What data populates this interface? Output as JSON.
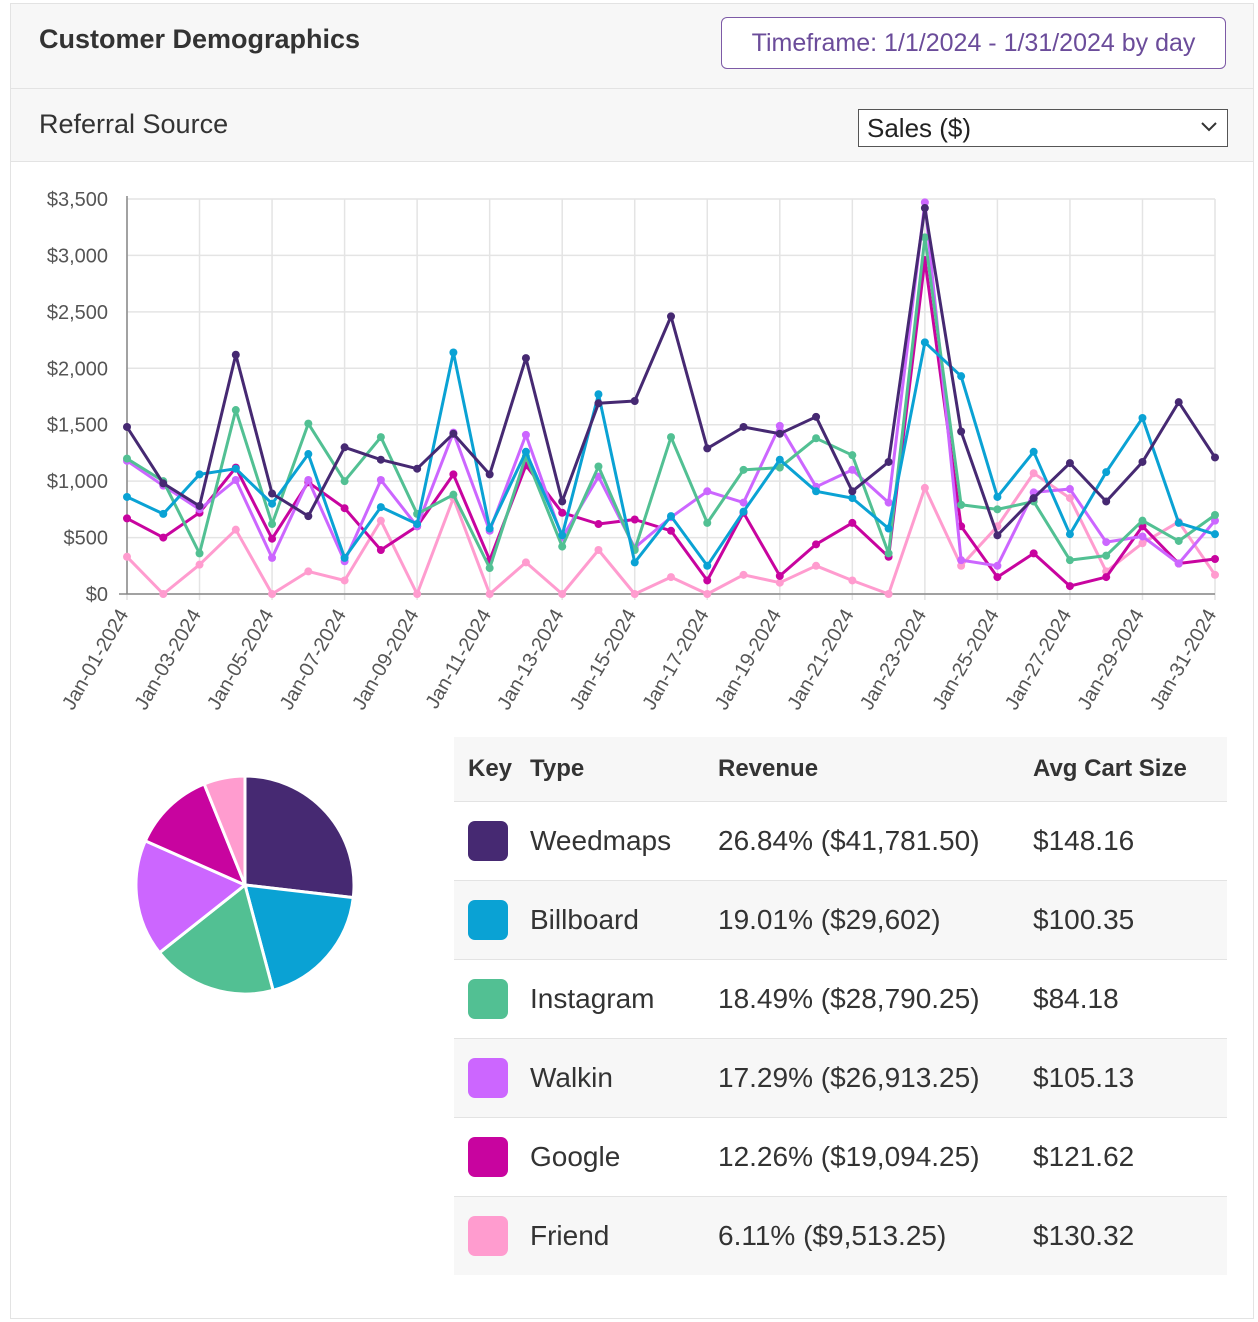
{
  "header": {
    "title": "Customer Demographics",
    "timeframe_label": "Timeframe: 1/1/2024 - 1/31/2024 by day"
  },
  "subheader": {
    "title": "Referral Source",
    "metric_select": "Sales ($)"
  },
  "chart_data": {
    "type": "line",
    "title": "",
    "xlabel": "",
    "ylabel": "",
    "ylim": [
      0,
      3500
    ],
    "yticks": [
      "$0",
      "$500",
      "$1,000",
      "$1,500",
      "$2,000",
      "$2,500",
      "$3,000",
      "$3,500"
    ],
    "ytick_values": [
      0,
      500,
      1000,
      1500,
      2000,
      2500,
      3000,
      3500
    ],
    "xtick_labels": [
      "Jan-01-2024",
      "Jan-03-2024",
      "Jan-05-2024",
      "Jan-07-2024",
      "Jan-09-2024",
      "Jan-11-2024",
      "Jan-13-2024",
      "Jan-15-2024",
      "Jan-17-2024",
      "Jan-19-2024",
      "Jan-21-2024",
      "Jan-23-2024",
      "Jan-25-2024",
      "Jan-27-2024",
      "Jan-29-2024",
      "Jan-31-2024"
    ],
    "days": 31,
    "grid": true,
    "series": [
      {
        "name": "Friend",
        "color": "#ff9ccf",
        "values": [
          330,
          0,
          260,
          570,
          0,
          200,
          120,
          650,
          0,
          850,
          0,
          280,
          0,
          390,
          0,
          150,
          0,
          170,
          100,
          250,
          120,
          0,
          940,
          250,
          600,
          1070,
          850,
          200,
          450,
          640,
          170
        ]
      },
      {
        "name": "Google",
        "color": "#c8049f",
        "values": [
          670,
          500,
          720,
          1120,
          490,
          990,
          760,
          390,
          600,
          1060,
          300,
          1140,
          720,
          620,
          660,
          560,
          120,
          720,
          160,
          440,
          630,
          330,
          2960,
          600,
          150,
          360,
          70,
          150,
          600,
          270,
          310
        ]
      },
      {
        "name": "Walkin",
        "color": "#cc66ff",
        "values": [
          1180,
          960,
          750,
          1010,
          320,
          1010,
          290,
          1010,
          600,
          1430,
          560,
          1410,
          500,
          1040,
          410,
          680,
          910,
          810,
          1490,
          950,
          1100,
          810,
          3470,
          300,
          250,
          900,
          930,
          460,
          510,
          270,
          650
        ]
      },
      {
        "name": "Instagram",
        "color": "#52c093",
        "values": [
          1200,
          1000,
          360,
          1630,
          620,
          1510,
          1000,
          1390,
          710,
          880,
          230,
          1220,
          420,
          1130,
          390,
          1390,
          630,
          1100,
          1120,
          1380,
          1230,
          360,
          3160,
          790,
          750,
          820,
          300,
          340,
          650,
          470,
          700
        ]
      },
      {
        "name": "Billboard",
        "color": "#0aa2d4",
        "values": [
          860,
          710,
          1060,
          1110,
          800,
          1240,
          320,
          770,
          620,
          2140,
          580,
          1260,
          520,
          1770,
          280,
          690,
          250,
          730,
          1190,
          910,
          850,
          580,
          2230,
          1930,
          860,
          1260,
          530,
          1080,
          1560,
          630,
          530
        ]
      },
      {
        "name": "Weedmaps",
        "color": "#462972",
        "values": [
          1480,
          980,
          780,
          2120,
          890,
          690,
          1300,
          1190,
          1110,
          1420,
          1060,
          2090,
          820,
          1690,
          1710,
          2460,
          1290,
          1480,
          1420,
          1570,
          910,
          1170,
          3420,
          1440,
          520,
          850,
          1160,
          820,
          1170,
          1700,
          1210
        ]
      }
    ],
    "pie": {
      "labels": [
        "Weedmaps",
        "Billboard",
        "Instagram",
        "Walkin",
        "Google",
        "Friend"
      ],
      "values": [
        26.84,
        19.01,
        18.49,
        17.29,
        12.26,
        6.11
      ],
      "colors": [
        "#462972",
        "#0aa2d4",
        "#52c093",
        "#cc66ff",
        "#c8049f",
        "#ff9ccf"
      ]
    }
  },
  "table": {
    "headers": {
      "key": "Key",
      "type": "Type",
      "revenue": "Revenue",
      "avg": "Avg Cart Size"
    },
    "rows": [
      {
        "type": "Weedmaps",
        "revenue": "26.84% ($41,781.50)",
        "avg": "$148.16",
        "color": "#462972"
      },
      {
        "type": "Billboard",
        "revenue": "19.01% ($29,602)",
        "avg": "$100.35",
        "color": "#0aa2d4"
      },
      {
        "type": "Instagram",
        "revenue": "18.49% ($28,790.25)",
        "avg": "$84.18",
        "color": "#52c093"
      },
      {
        "type": "Walkin",
        "revenue": "17.29% ($26,913.25)",
        "avg": "$105.13",
        "color": "#cc66ff"
      },
      {
        "type": "Google",
        "revenue": "12.26% ($19,094.25)",
        "avg": "$121.62",
        "color": "#c8049f"
      },
      {
        "type": "Friend",
        "revenue": "6.11% ($9,513.25)",
        "avg": "$130.32",
        "color": "#ff9ccf"
      }
    ]
  }
}
